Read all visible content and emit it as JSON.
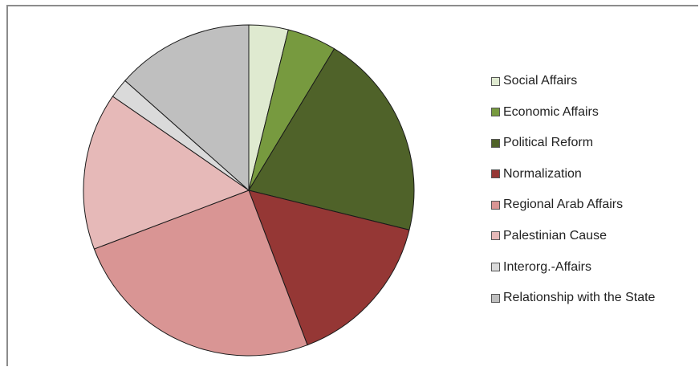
{
  "chart_data": {
    "type": "pie",
    "title": "",
    "legend_position": "right",
    "series": [
      {
        "label": "Social Affairs",
        "value": 4,
        "color": "#dfead0"
      },
      {
        "label": "Economic Affairs",
        "value": 5,
        "color": "#779a3f"
      },
      {
        "label": "Political Reform",
        "value": 21,
        "color": "#4f6229"
      },
      {
        "label": "Normalization",
        "value": 16,
        "color": "#953735"
      },
      {
        "label": "Regional Arab Affairs",
        "value": 26,
        "color": "#d99594"
      },
      {
        "label": "Palestinian Cause",
        "value": 16,
        "color": "#e6b9b8"
      },
      {
        "label": "Interorg.-Affairs",
        "value": 2,
        "color": "#dadada"
      },
      {
        "label": "Relationship with the State",
        "value": 14,
        "color": "#bfbfbf"
      }
    ]
  }
}
